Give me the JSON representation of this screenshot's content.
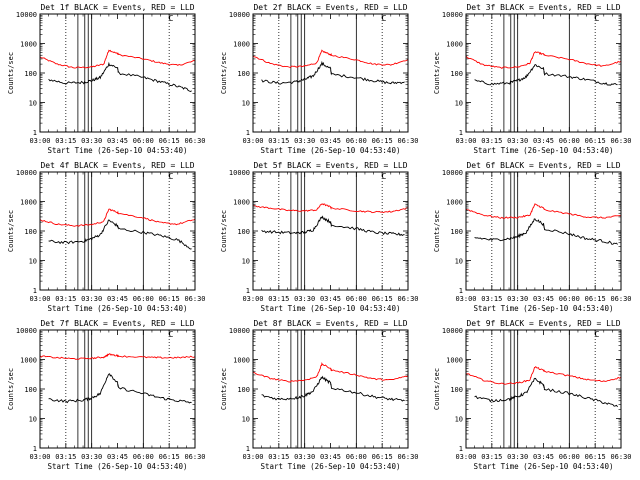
{
  "colors": {
    "background": "#ffffff",
    "events": "#000000",
    "lld": "#ff0000",
    "frame": "#000000"
  },
  "chart_data": [
    {
      "type": "line",
      "title": "Det 1f BLACK = Events, RED = LLD",
      "title_mark": "C",
      "xlabel": "Start Time (26-Sep-10 04:53:40)",
      "ylabel": "Counts/sec",
      "x_ticks": [
        "03:00",
        "03:15",
        "03:30",
        "03:45",
        "06:00",
        "06:15",
        "06:30"
      ],
      "y_ticks": [
        "1",
        "10",
        "100",
        "1000",
        "10000"
      ],
      "yscale": "log",
      "ylim": [
        1,
        10000
      ],
      "dotted_x": [
        "03:15",
        "06:15"
      ],
      "solid_x": [
        "03:22",
        "03:26",
        "03:28",
        "03:30",
        "06:00"
      ],
      "series": [
        {
          "color": "#ff0000",
          "x": [
            "03:00",
            "03:10",
            "03:20",
            "03:30",
            "03:37",
            "03:40",
            "03:45",
            "03:50",
            "06:00",
            "06:10",
            "06:20",
            "06:30"
          ],
          "y": [
            350,
            200,
            150,
            160,
            200,
            600,
            450,
            420,
            300,
            220,
            180,
            260
          ]
        },
        {
          "color": "#000000",
          "x": [
            "03:05",
            "03:15",
            "03:25",
            "03:30",
            "03:35",
            "03:40",
            "03:45",
            "03:50",
            "06:00",
            "06:10",
            "06:20",
            "06:28"
          ],
          "y": [
            60,
            45,
            48,
            55,
            70,
            200,
            150,
            100,
            70,
            50,
            35,
            25
          ]
        }
      ]
    },
    {
      "type": "line",
      "title": "Det 2f BLACK = Events, RED = LLD",
      "title_mark": "C",
      "xlabel": "Start Time (26-Sep-10 04:53:40)",
      "ylabel": "Counts/sec",
      "x_ticks": [
        "03:00",
        "03:15",
        "03:30",
        "03:45",
        "06:00",
        "06:15",
        "06:30"
      ],
      "y_ticks": [
        "1",
        "10",
        "100",
        "1000",
        "10000"
      ],
      "yscale": "log",
      "ylim": [
        1,
        10000
      ],
      "dotted_x": [
        "03:15",
        "06:15"
      ],
      "solid_x": [
        "03:22",
        "03:26",
        "03:28",
        "03:30",
        "06:00"
      ],
      "series": [
        {
          "color": "#ff0000",
          "x": [
            "03:00",
            "03:10",
            "03:20",
            "03:30",
            "03:37",
            "03:40",
            "03:45",
            "03:50",
            "06:00",
            "06:10",
            "06:20",
            "06:30"
          ],
          "y": [
            380,
            210,
            160,
            170,
            220,
            560,
            420,
            400,
            280,
            200,
            190,
            290
          ]
        },
        {
          "color": "#000000",
          "x": [
            "03:05",
            "03:15",
            "03:25",
            "03:30",
            "03:35",
            "03:40",
            "03:45",
            "03:50",
            "06:00",
            "06:10",
            "06:20",
            "06:28"
          ],
          "y": [
            55,
            45,
            50,
            60,
            80,
            210,
            140,
            90,
            70,
            55,
            45,
            50
          ]
        }
      ]
    },
    {
      "type": "line",
      "title": "Det 3f BLACK = Events, RED = LLD",
      "title_mark": "C",
      "xlabel": "Start Time (26-Sep-10 04:53:40)",
      "ylabel": "Counts/sec",
      "x_ticks": [
        "03:00",
        "03:15",
        "03:30",
        "03:45",
        "06:00",
        "06:15",
        "06:30"
      ],
      "y_ticks": [
        "1",
        "10",
        "100",
        "1000",
        "10000"
      ],
      "yscale": "log",
      "ylim": [
        1,
        10000
      ],
      "dotted_x": [
        "03:15",
        "06:15"
      ],
      "solid_x": [
        "03:22",
        "03:26",
        "03:28",
        "03:30",
        "06:00"
      ],
      "series": [
        {
          "color": "#ff0000",
          "x": [
            "03:00",
            "03:10",
            "03:20",
            "03:30",
            "03:37",
            "03:40",
            "03:45",
            "03:50",
            "06:00",
            "06:10",
            "06:20",
            "06:30"
          ],
          "y": [
            360,
            190,
            150,
            160,
            210,
            520,
            430,
            400,
            290,
            210,
            170,
            250
          ]
        },
        {
          "color": "#000000",
          "x": [
            "03:05",
            "03:15",
            "03:25",
            "03:30",
            "03:35",
            "03:40",
            "03:45",
            "03:50",
            "06:00",
            "06:10",
            "06:20",
            "06:28"
          ],
          "y": [
            55,
            42,
            46,
            55,
            75,
            190,
            140,
            95,
            75,
            60,
            45,
            40
          ]
        }
      ]
    },
    {
      "type": "line",
      "title": "Det 4f BLACK = Events, RED = LLD",
      "title_mark": "C",
      "xlabel": "Start Time (26-Sep-10 04:53:40)",
      "ylabel": "Counts/sec",
      "x_ticks": [
        "03:00",
        "03:15",
        "03:30",
        "03:45",
        "06:00",
        "06:15",
        "06:30"
      ],
      "y_ticks": [
        "1",
        "10",
        "100",
        "1000",
        "10000"
      ],
      "yscale": "log",
      "ylim": [
        1,
        10000
      ],
      "dotted_x": [
        "03:15",
        "06:15"
      ],
      "solid_x": [
        "03:22",
        "03:26",
        "03:28",
        "03:30",
        "06:00"
      ],
      "series": [
        {
          "color": "#ff0000",
          "x": [
            "03:00",
            "03:10",
            "03:20",
            "03:30",
            "03:37",
            "03:40",
            "03:45",
            "03:50",
            "06:00",
            "06:10",
            "06:20",
            "06:30"
          ],
          "y": [
            240,
            170,
            150,
            165,
            210,
            550,
            430,
            400,
            280,
            190,
            170,
            250
          ]
        },
        {
          "color": "#000000",
          "x": [
            "03:05",
            "03:15",
            "03:25",
            "03:30",
            "03:35",
            "03:40",
            "03:45",
            "03:50",
            "06:00",
            "06:10",
            "06:20",
            "06:28"
          ],
          "y": [
            45,
            40,
            45,
            55,
            75,
            230,
            150,
            120,
            90,
            70,
            50,
            25
          ]
        }
      ]
    },
    {
      "type": "line",
      "title": "Det 5f BLACK = Events, RED = LLD",
      "title_mark": "C",
      "xlabel": "Start Time (26-Sep-10 04:53:40)",
      "ylabel": "Counts/sec",
      "x_ticks": [
        "03:00",
        "03:15",
        "03:30",
        "03:45",
        "06:00",
        "06:15",
        "06:30"
      ],
      "y_ticks": [
        "1",
        "10",
        "100",
        "1000",
        "10000"
      ],
      "yscale": "log",
      "ylim": [
        1,
        10000
      ],
      "dotted_x": [
        "03:15",
        "06:15"
      ],
      "solid_x": [
        "03:22",
        "03:26",
        "03:28",
        "03:30",
        "06:00"
      ],
      "series": [
        {
          "color": "#ff0000",
          "x": [
            "03:00",
            "03:10",
            "03:20",
            "03:30",
            "03:37",
            "03:40",
            "03:45",
            "03:50",
            "06:00",
            "06:10",
            "06:20",
            "06:30"
          ],
          "y": [
            700,
            600,
            500,
            480,
            520,
            850,
            650,
            600,
            480,
            440,
            450,
            600
          ]
        },
        {
          "color": "#000000",
          "x": [
            "03:05",
            "03:15",
            "03:25",
            "03:30",
            "03:35",
            "03:40",
            "03:45",
            "03:50",
            "06:00",
            "06:10",
            "06:20",
            "06:28"
          ],
          "y": [
            100,
            90,
            85,
            90,
            110,
            300,
            200,
            160,
            120,
            90,
            80,
            75
          ]
        }
      ]
    },
    {
      "type": "line",
      "title": "Det 6f BLACK = Events, RED = LLD",
      "title_mark": "C",
      "xlabel": "Start Time (26-Sep-10 04:53:40)",
      "ylabel": "Counts/sec",
      "x_ticks": [
        "03:00",
        "03:15",
        "03:30",
        "03:45",
        "06:00",
        "06:15",
        "06:30"
      ],
      "y_ticks": [
        "1",
        "10",
        "100",
        "1000",
        "10000"
      ],
      "yscale": "log",
      "ylim": [
        1,
        10000
      ],
      "dotted_x": [
        "03:15",
        "06:15"
      ],
      "solid_x": [
        "03:22",
        "03:26",
        "03:28",
        "03:30",
        "06:00"
      ],
      "series": [
        {
          "color": "#ff0000",
          "x": [
            "03:00",
            "03:10",
            "03:20",
            "03:30",
            "03:37",
            "03:40",
            "03:45",
            "03:50",
            "06:00",
            "06:10",
            "06:20",
            "06:30"
          ],
          "y": [
            550,
            350,
            280,
            290,
            340,
            800,
            600,
            520,
            380,
            300,
            280,
            330
          ]
        },
        {
          "color": "#000000",
          "x": [
            "03:05",
            "03:15",
            "03:25",
            "03:30",
            "03:35",
            "03:40",
            "03:45",
            "03:50",
            "06:00",
            "06:10",
            "06:20",
            "06:28"
          ],
          "y": [
            60,
            50,
            55,
            65,
            90,
            260,
            170,
            120,
            80,
            55,
            45,
            35
          ]
        }
      ]
    },
    {
      "type": "line",
      "title": "Det 7f BLACK = Events, RED = LLD",
      "title_mark": "C",
      "xlabel": "Start Time (26-Sep-10 04:53:40)",
      "ylabel": "Counts/sec",
      "x_ticks": [
        "03:00",
        "03:15",
        "03:30",
        "03:45",
        "06:00",
        "06:15",
        "06:30"
      ],
      "y_ticks": [
        "1",
        "10",
        "100",
        "1000",
        "10000"
      ],
      "yscale": "log",
      "ylim": [
        1,
        10000
      ],
      "dotted_x": [
        "03:15",
        "06:15"
      ],
      "solid_x": [
        "03:22",
        "03:26",
        "03:28",
        "03:30",
        "06:00"
      ],
      "series": [
        {
          "color": "#ff0000",
          "x": [
            "03:00",
            "03:10",
            "03:20",
            "03:30",
            "03:37",
            "03:40",
            "03:45",
            "03:50",
            "06:00",
            "06:10",
            "06:20",
            "06:30"
          ],
          "y": [
            1300,
            1150,
            1050,
            1100,
            1200,
            1500,
            1350,
            1300,
            1200,
            1150,
            1150,
            1250
          ]
        },
        {
          "color": "#000000",
          "x": [
            "03:05",
            "03:15",
            "03:25",
            "03:30",
            "03:35",
            "03:40",
            "03:45",
            "03:50",
            "06:00",
            "06:10",
            "06:20",
            "06:28"
          ],
          "y": [
            45,
            38,
            42,
            50,
            70,
            350,
            160,
            110,
            70,
            50,
            40,
            35
          ]
        }
      ]
    },
    {
      "type": "line",
      "title": "Det 8f BLACK = Events, RED = LLD",
      "title_mark": "C",
      "xlabel": "Start Time (26-Sep-10 04:53:40)",
      "ylabel": "Counts/sec",
      "x_ticks": [
        "03:00",
        "03:15",
        "03:30",
        "03:45",
        "06:00",
        "06:15",
        "06:30"
      ],
      "y_ticks": [
        "1",
        "10",
        "100",
        "1000",
        "10000"
      ],
      "yscale": "log",
      "ylim": [
        1,
        10000
      ],
      "dotted_x": [
        "03:15",
        "06:15"
      ],
      "solid_x": [
        "03:22",
        "03:26",
        "03:28",
        "03:30",
        "06:00"
      ],
      "series": [
        {
          "color": "#ff0000",
          "x": [
            "03:00",
            "03:10",
            "03:20",
            "03:30",
            "03:37",
            "03:40",
            "03:45",
            "03:50",
            "06:00",
            "06:10",
            "06:20",
            "06:30"
          ],
          "y": [
            360,
            230,
            180,
            200,
            260,
            700,
            500,
            440,
            300,
            220,
            200,
            280
          ]
        },
        {
          "color": "#000000",
          "x": [
            "03:05",
            "03:15",
            "03:25",
            "03:30",
            "03:35",
            "03:40",
            "03:45",
            "03:50",
            "06:00",
            "06:10",
            "06:20",
            "06:28"
          ],
          "y": [
            60,
            45,
            50,
            60,
            85,
            250,
            160,
            110,
            75,
            55,
            45,
            40
          ]
        }
      ]
    },
    {
      "type": "line",
      "title": "Det 9f BLACK = Events, RED = LLD",
      "title_mark": "C",
      "xlabel": "Start Time (26-Sep-10 04:53:40)",
      "ylabel": "Counts/sec",
      "x_ticks": [
        "03:00",
        "03:15",
        "03:30",
        "03:45",
        "06:00",
        "06:15",
        "06:30"
      ],
      "y_ticks": [
        "1",
        "10",
        "100",
        "1000",
        "10000"
      ],
      "yscale": "log",
      "ylim": [
        1,
        10000
      ],
      "dotted_x": [
        "03:15",
        "06:15"
      ],
      "solid_x": [
        "03:22",
        "03:26",
        "03:28",
        "03:30",
        "06:00"
      ],
      "series": [
        {
          "color": "#ff0000",
          "x": [
            "03:00",
            "03:10",
            "03:20",
            "03:30",
            "03:37",
            "03:40",
            "03:45",
            "03:50",
            "06:00",
            "06:10",
            "06:20",
            "06:30"
          ],
          "y": [
            340,
            200,
            150,
            160,
            200,
            560,
            420,
            400,
            280,
            210,
            180,
            250
          ]
        },
        {
          "color": "#000000",
          "x": [
            "03:05",
            "03:15",
            "03:25",
            "03:30",
            "03:35",
            "03:40",
            "03:45",
            "03:50",
            "06:00",
            "06:10",
            "06:20",
            "06:28"
          ],
          "y": [
            55,
            40,
            45,
            55,
            75,
            220,
            140,
            100,
            70,
            50,
            35,
            25
          ]
        }
      ]
    }
  ]
}
